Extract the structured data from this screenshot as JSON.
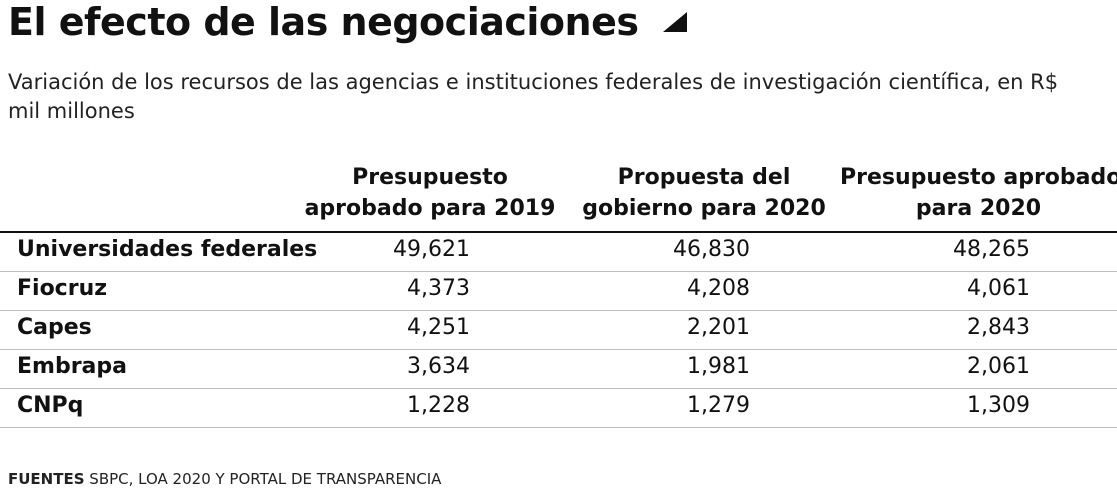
{
  "chart_data": {
    "type": "table",
    "title": "El efecto de las negociaciones",
    "subtitle": "Variación de los recursos de las agencias e instituciones federales de investigación científica, en R$ mil millones",
    "columns": [
      {
        "line1": "Presupuesto",
        "line2": "aprobado para 2019"
      },
      {
        "line1": "Propuesta del",
        "line2": "gobierno para 2020"
      },
      {
        "line1": "Presupuesto aprobado",
        "line2": "para 2020"
      }
    ],
    "rows": [
      {
        "label": "Universidades federales",
        "values": [
          "49,621",
          "46,830",
          "48,265"
        ]
      },
      {
        "label": "Fiocruz",
        "values": [
          "4,373",
          "4,208",
          "4,061"
        ]
      },
      {
        "label": "Capes",
        "values": [
          "4,251",
          "2,201",
          "2,843"
        ]
      },
      {
        "label": "Embrapa",
        "values": [
          "3,634",
          "1,981",
          "2,061"
        ]
      },
      {
        "label": "CNPq",
        "values": [
          "1,228",
          "1,279",
          "1,309"
        ]
      }
    ],
    "source_label": "FUENTES",
    "source_text": "SBPC, LOA 2020 Y PORTAL DE TRANSPARENCIA"
  }
}
